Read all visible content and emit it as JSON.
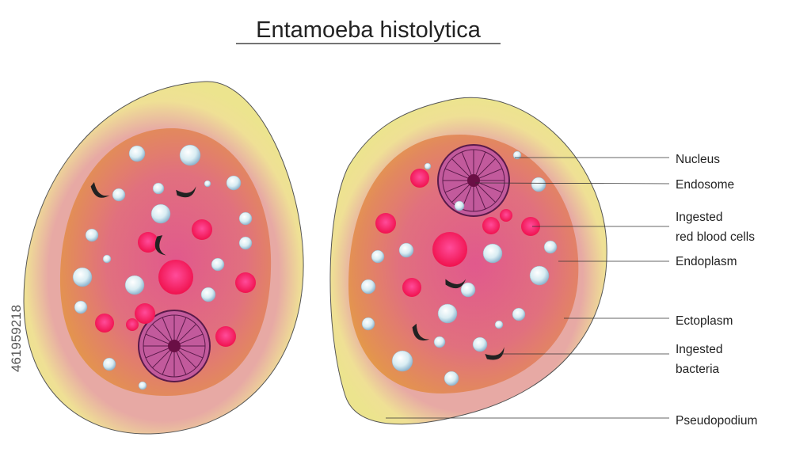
{
  "title": "Entamoeba histolytica",
  "labels": [
    {
      "lines": [
        "Nucleus"
      ]
    },
    {
      "lines": [
        "Endosome"
      ]
    },
    {
      "lines": [
        "Ingested",
        "red blood cells"
      ]
    },
    {
      "lines": [
        "Endoplasm"
      ]
    },
    {
      "lines": [
        "Ectoplasm"
      ]
    },
    {
      "lines": [
        "Ingested",
        "bacteria"
      ]
    },
    {
      "lines": [
        "Pseudopodium"
      ]
    }
  ],
  "stock_id": "461959218"
}
